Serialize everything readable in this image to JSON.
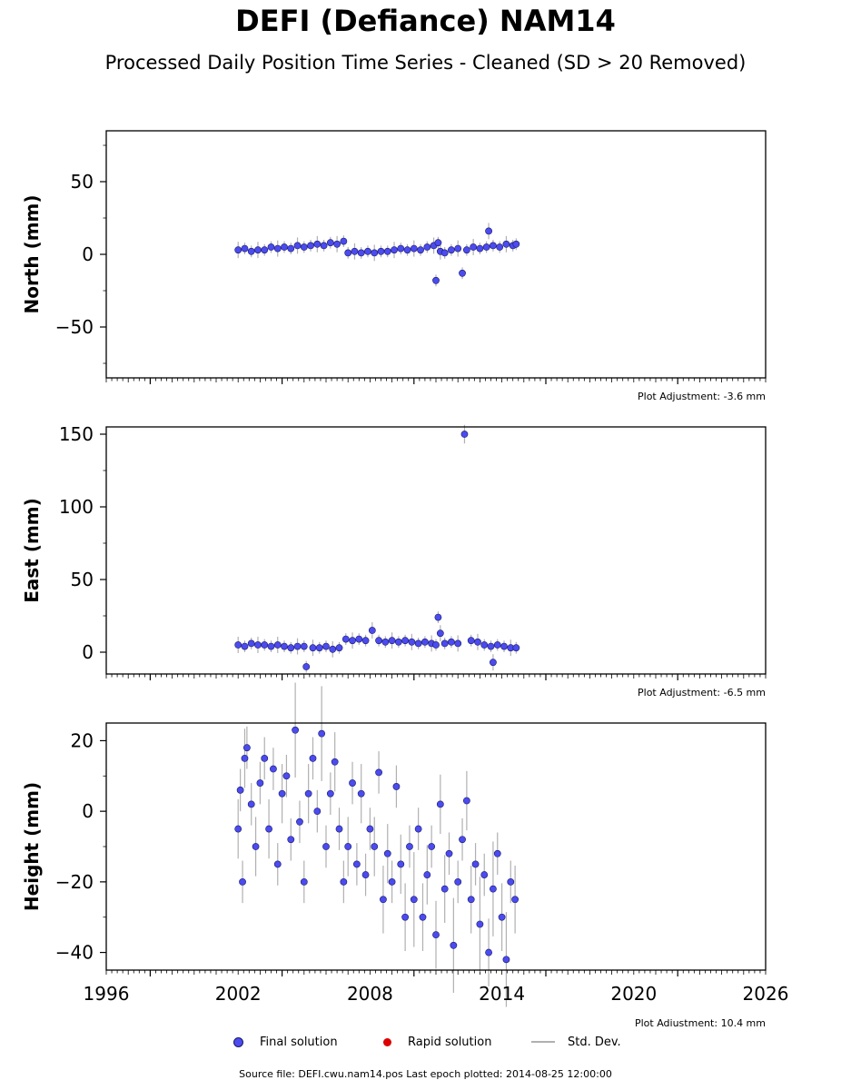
{
  "title": "DEFI (Defiance) NAM14",
  "subtitle": "Processed Daily Position Time Series - Cleaned (SD > 20 Removed)",
  "colors": {
    "final": "#4b4bf0",
    "final_edge": "#1a1a66",
    "rapid": "#dd0000",
    "stddev": "#b0b0b0"
  },
  "legend": {
    "final": "Final solution",
    "rapid": "Rapid solution",
    "stddev": "Std. Dev."
  },
  "source_text": "Source file: DEFI.cwu.nam14.pos  Last epoch plotted: 2014-08-25 12:00:00",
  "chart_data": [
    {
      "type": "scatter",
      "ylabel": "North (mm)",
      "xlim": [
        1996,
        2026
      ],
      "ylim": [
        -85,
        85
      ],
      "yticks": [
        -50,
        0,
        50
      ],
      "xtick_labels_shown": false,
      "adjustment": "Plot Adjustment: -3.6 mm",
      "series": [
        {
          "x": [
            2002.0,
            2002.3,
            2002.6,
            2002.9,
            2003.2,
            2003.5,
            2003.8,
            2004.1,
            2004.4,
            2004.7,
            2005.0,
            2005.3,
            2005.6,
            2005.9,
            2006.2,
            2006.5,
            2006.8,
            2007.0,
            2007.3,
            2007.6,
            2007.9,
            2008.2,
            2008.5,
            2008.8,
            2009.1,
            2009.4,
            2009.7,
            2010.0,
            2010.3,
            2010.6,
            2010.9,
            2011.0,
            2011.1,
            2011.2,
            2011.4,
            2011.7,
            2012.0,
            2012.2,
            2012.4,
            2012.7,
            2013.0,
            2013.3,
            2013.4,
            2013.6,
            2013.9,
            2014.2,
            2014.5,
            2014.65
          ],
          "y": [
            3,
            4,
            2,
            3,
            3,
            5,
            4,
            5,
            4,
            6,
            5,
            6,
            7,
            6,
            8,
            7,
            9,
            1,
            2,
            1,
            2,
            1,
            2,
            2,
            3,
            4,
            3,
            4,
            3,
            5,
            6,
            -18,
            8,
            2,
            1,
            3,
            4,
            -13,
            3,
            5,
            4,
            5,
            16,
            6,
            5,
            7,
            6,
            7
          ]
        }
      ]
    },
    {
      "type": "scatter",
      "ylabel": "East (mm)",
      "xlim": [
        1996,
        2026
      ],
      "ylim": [
        -15,
        155
      ],
      "yticks": [
        0,
        50,
        100,
        150
      ],
      "xtick_labels_shown": false,
      "adjustment": "Plot Adjustment: -6.5 mm",
      "series": [
        {
          "x": [
            2002.0,
            2002.3,
            2002.6,
            2002.9,
            2003.2,
            2003.5,
            2003.8,
            2004.1,
            2004.4,
            2004.7,
            2005.0,
            2005.1,
            2005.4,
            2005.7,
            2006.0,
            2006.3,
            2006.6,
            2006.9,
            2007.2,
            2007.5,
            2007.8,
            2008.1,
            2008.4,
            2008.7,
            2009.0,
            2009.3,
            2009.6,
            2009.9,
            2010.2,
            2010.5,
            2010.8,
            2011.0,
            2011.1,
            2011.2,
            2011.4,
            2011.7,
            2012.0,
            2012.3,
            2012.6,
            2012.9,
            2013.2,
            2013.5,
            2013.6,
            2013.8,
            2014.1,
            2014.4,
            2014.65
          ],
          "y": [
            5,
            4,
            6,
            5,
            5,
            4,
            5,
            4,
            3,
            4,
            4,
            -10,
            3,
            3,
            4,
            2,
            3,
            9,
            8,
            9,
            8,
            15,
            8,
            7,
            8,
            7,
            8,
            7,
            6,
            7,
            6,
            5,
            24,
            13,
            6,
            7,
            6,
            150,
            8,
            7,
            5,
            4,
            -7,
            5,
            4,
            3,
            3
          ]
        }
      ]
    },
    {
      "type": "scatter",
      "ylabel": "Height (mm)",
      "xlim": [
        1996,
        2026
      ],
      "ylim": [
        -45,
        25
      ],
      "yticks": [
        -40,
        -20,
        0,
        20
      ],
      "xticks": [
        1996,
        2002,
        2008,
        2014,
        2020,
        2026
      ],
      "xtick_labels": [
        "1996",
        "2002",
        "2008",
        "2014",
        "2020",
        "2026"
      ],
      "xtick_labels_shown": true,
      "adjustment": "Plot Adjustment: 10.4 mm",
      "series": [
        {
          "x": [
            2002.0,
            2002.1,
            2002.2,
            2002.3,
            2002.4,
            2002.6,
            2002.8,
            2003.0,
            2003.2,
            2003.4,
            2003.6,
            2003.8,
            2004.0,
            2004.2,
            2004.4,
            2004.6,
            2004.8,
            2005.0,
            2005.2,
            2005.4,
            2005.6,
            2005.8,
            2006.0,
            2006.2,
            2006.4,
            2006.6,
            2006.8,
            2007.0,
            2007.2,
            2007.4,
            2007.6,
            2007.8,
            2008.0,
            2008.2,
            2008.4,
            2008.6,
            2008.8,
            2009.0,
            2009.2,
            2009.4,
            2009.6,
            2009.8,
            2010.0,
            2010.2,
            2010.4,
            2010.6,
            2010.8,
            2011.0,
            2011.2,
            2011.4,
            2011.6,
            2011.8,
            2012.0,
            2012.2,
            2012.4,
            2012.6,
            2012.8,
            2013.0,
            2013.2,
            2013.4,
            2013.6,
            2013.8,
            2014.0,
            2014.2,
            2014.4,
            2014.6
          ],
          "y": [
            -5,
            6,
            -20,
            15,
            18,
            2,
            -10,
            8,
            15,
            -5,
            12,
            -15,
            5,
            10,
            -8,
            23,
            -3,
            -20,
            5,
            15,
            0,
            22,
            -10,
            5,
            14,
            -5,
            -20,
            -10,
            8,
            -15,
            5,
            -18,
            -5,
            -10,
            11,
            -25,
            -12,
            -20,
            7,
            -15,
            -30,
            -10,
            -25,
            -5,
            -30,
            -18,
            -10,
            -35,
            2,
            -22,
            -12,
            -38,
            -20,
            -8,
            3,
            -25,
            -15,
            -32,
            -18,
            -40,
            -22,
            -12,
            -30,
            -42,
            -20,
            -25
          ]
        }
      ]
    }
  ]
}
